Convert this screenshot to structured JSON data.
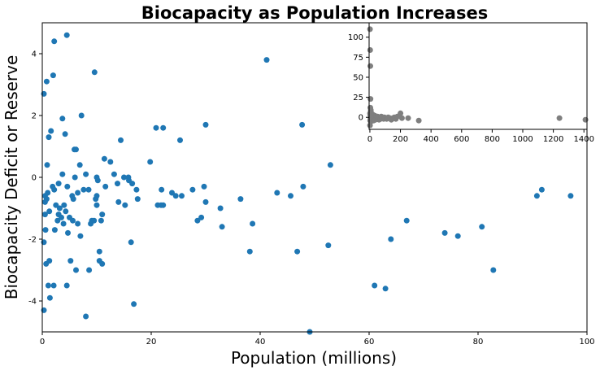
{
  "chart_data": {
    "type": "scatter",
    "title": "Biocapacity as Population Increases",
    "xlabel": "Population (millions)",
    "ylabel": "Biocapacity Deficit or Reserve",
    "xlim": [
      0,
      100
    ],
    "ylim": [
      -5,
      5
    ],
    "x_ticks": [
      "0",
      "20",
      "40",
      "60",
      "80",
      "100"
    ],
    "y_ticks": [
      "-4",
      "-2",
      "0",
      "2",
      "4"
    ],
    "grid": false,
    "marker_color": "#1f77b4",
    "points": [
      [
        0.3,
        -4.3
      ],
      [
        0.3,
        -2.1
      ],
      [
        0.3,
        2.7
      ],
      [
        0.5,
        -0.8
      ],
      [
        0.5,
        -0.6
      ],
      [
        0.5,
        -1.2
      ],
      [
        0.6,
        -1.7
      ],
      [
        0.7,
        -2.8
      ],
      [
        0.8,
        3.1
      ],
      [
        0.8,
        -0.7
      ],
      [
        0.9,
        0.4
      ],
      [
        1.0,
        -0.5
      ],
      [
        1.1,
        -3.5
      ],
      [
        1.2,
        1.3
      ],
      [
        1.3,
        -1.1
      ],
      [
        1.3,
        -2.7
      ],
      [
        1.4,
        -3.9
      ],
      [
        1.6,
        1.5
      ],
      [
        1.9,
        -0.3
      ],
      [
        2.0,
        3.3
      ],
      [
        2.2,
        4.4
      ],
      [
        2.3,
        -1.7
      ],
      [
        2.1,
        -3.5
      ],
      [
        2.2,
        -0.4
      ],
      [
        2.5,
        -0.9
      ],
      [
        2.8,
        -1.4
      ],
      [
        3.0,
        -1.2
      ],
      [
        3.0,
        -0.2
      ],
      [
        3.2,
        -1.0
      ],
      [
        3.5,
        -1.3
      ],
      [
        3.7,
        1.9
      ],
      [
        3.7,
        0.1
      ],
      [
        3.9,
        -1.5
      ],
      [
        4.0,
        -0.9
      ],
      [
        4.2,
        1.4
      ],
      [
        4.3,
        -1.1
      ],
      [
        4.5,
        4.6
      ],
      [
        4.6,
        -0.3
      ],
      [
        4.5,
        -3.5
      ],
      [
        4.7,
        -1.8
      ],
      [
        5.0,
        -1.3
      ],
      [
        5.2,
        -2.7
      ],
      [
        5.5,
        -0.6
      ],
      [
        5.6,
        -1.4
      ],
      [
        5.7,
        -0.7
      ],
      [
        5.9,
        0.9
      ],
      [
        6.0,
        0.0
      ],
      [
        6.2,
        0.9
      ],
      [
        6.2,
        -3.0
      ],
      [
        6.5,
        -0.5
      ],
      [
        6.5,
        -1.5
      ],
      [
        6.9,
        0.4
      ],
      [
        7.0,
        -1.9
      ],
      [
        7.2,
        2.0
      ],
      [
        7.6,
        -0.4
      ],
      [
        8.0,
        0.1
      ],
      [
        8.0,
        -4.5
      ],
      [
        8.5,
        -0.4
      ],
      [
        8.6,
        -3.0
      ],
      [
        8.9,
        -1.5
      ],
      [
        9.1,
        -1.4
      ],
      [
        9.5,
        -1.4
      ],
      [
        9.6,
        3.4
      ],
      [
        9.8,
        -0.7
      ],
      [
        10.0,
        -0.6
      ],
      [
        10.0,
        -0.9
      ],
      [
        10.0,
        0.0
      ],
      [
        10.2,
        -0.1
      ],
      [
        10.5,
        -2.4
      ],
      [
        10.5,
        -2.7
      ],
      [
        10.8,
        -1.4
      ],
      [
        11.0,
        -2.8
      ],
      [
        11.0,
        -1.2
      ],
      [
        11.4,
        0.6
      ],
      [
        11.6,
        -0.3
      ],
      [
        12.5,
        0.5
      ],
      [
        13.2,
        0.1
      ],
      [
        13.8,
        -0.2
      ],
      [
        14.0,
        -0.8
      ],
      [
        14.4,
        1.2
      ],
      [
        15.0,
        0.0
      ],
      [
        15.2,
        -0.9
      ],
      [
        15.9,
        -0.1
      ],
      [
        15.8,
        0.0
      ],
      [
        16.3,
        -2.1
      ],
      [
        16.5,
        -0.2
      ],
      [
        16.8,
        -4.1
      ],
      [
        17.3,
        -0.4
      ],
      [
        17.5,
        -0.7
      ],
      [
        19.8,
        0.5
      ],
      [
        20.9,
        1.6
      ],
      [
        21.2,
        -0.9
      ],
      [
        21.8,
        -0.9
      ],
      [
        21.9,
        -0.4
      ],
      [
        22.2,
        1.6
      ],
      [
        22.2,
        -0.9
      ],
      [
        23.8,
        -0.5
      ],
      [
        24.5,
        -0.6
      ],
      [
        25.3,
        1.2
      ],
      [
        25.6,
        -0.6
      ],
      [
        27.6,
        -0.4
      ],
      [
        28.5,
        -1.4
      ],
      [
        29.2,
        -1.3
      ],
      [
        29.7,
        -0.3
      ],
      [
        30.0,
        1.7
      ],
      [
        30.0,
        -0.8
      ],
      [
        32.7,
        -1.0
      ],
      [
        33.0,
        -1.6
      ],
      [
        36.4,
        -0.7
      ],
      [
        38.1,
        -2.4
      ],
      [
        38.6,
        -1.5
      ],
      [
        41.2,
        3.8
      ],
      [
        43.1,
        -0.5
      ],
      [
        45.6,
        -0.6
      ],
      [
        46.8,
        -2.4
      ],
      [
        47.7,
        1.7
      ],
      [
        47.9,
        -0.3
      ],
      [
        49.1,
        -5.0
      ],
      [
        52.5,
        -2.2
      ],
      [
        52.9,
        0.4
      ],
      [
        61.0,
        -3.5
      ],
      [
        63.0,
        -3.6
      ],
      [
        64.0,
        -2.0
      ],
      [
        66.9,
        -1.4
      ],
      [
        73.9,
        -1.8
      ],
      [
        76.3,
        -1.9
      ],
      [
        80.7,
        -1.6
      ],
      [
        82.8,
        -3.0
      ],
      [
        90.8,
        -0.6
      ],
      [
        91.7,
        -0.4
      ],
      [
        97.0,
        -0.6
      ]
    ],
    "inset": {
      "type": "scatter",
      "xlim": [
        -5,
        1420
      ],
      "ylim": [
        -15,
        118
      ],
      "x_ticks": [
        "0",
        "200",
        "400",
        "600",
        "800",
        "1000",
        "1200",
        "1400"
      ],
      "y_ticks": [
        "0",
        "25",
        "50",
        "75",
        "100"
      ],
      "marker_color": "#7f7f7f",
      "points": [
        [
          1,
          -10
        ],
        [
          2,
          -4
        ],
        [
          3,
          12
        ],
        [
          1,
          5
        ],
        [
          2,
          3
        ],
        [
          4,
          -2
        ],
        [
          5,
          0
        ],
        [
          6,
          7
        ],
        [
          8,
          -5
        ],
        [
          9,
          2
        ],
        [
          10,
          -3
        ],
        [
          12,
          1
        ],
        [
          14,
          -1
        ],
        [
          15,
          4
        ],
        [
          18,
          -2
        ],
        [
          20,
          0
        ],
        [
          22,
          3
        ],
        [
          25,
          -4
        ],
        [
          28,
          1
        ],
        [
          30,
          -1
        ],
        [
          33,
          2
        ],
        [
          36,
          -3
        ],
        [
          40,
          0
        ],
        [
          45,
          -2
        ],
        [
          50,
          1
        ],
        [
          55,
          -1
        ],
        [
          60,
          -3
        ],
        [
          65,
          0
        ],
        [
          70,
          -2
        ],
        [
          75,
          1
        ],
        [
          80,
          -1
        ],
        [
          90,
          -2
        ],
        [
          95,
          0
        ],
        [
          100,
          -1
        ],
        [
          110,
          -2
        ],
        [
          120,
          0
        ],
        [
          130,
          -1
        ],
        [
          140,
          -3
        ],
        [
          150,
          -1
        ],
        [
          160,
          0
        ],
        [
          170,
          -2
        ],
        [
          180,
          1
        ],
        [
          200,
          5
        ],
        [
          210,
          -1
        ],
        [
          250,
          -1
        ],
        [
          320,
          -4
        ],
        [
          1240,
          -1
        ],
        [
          1410,
          -3
        ],
        [
          1,
          110
        ],
        [
          2,
          84
        ],
        [
          3,
          64
        ],
        [
          4,
          23
        ],
        [
          6,
          9
        ],
        [
          7,
          5
        ],
        [
          8,
          3
        ]
      ]
    }
  }
}
